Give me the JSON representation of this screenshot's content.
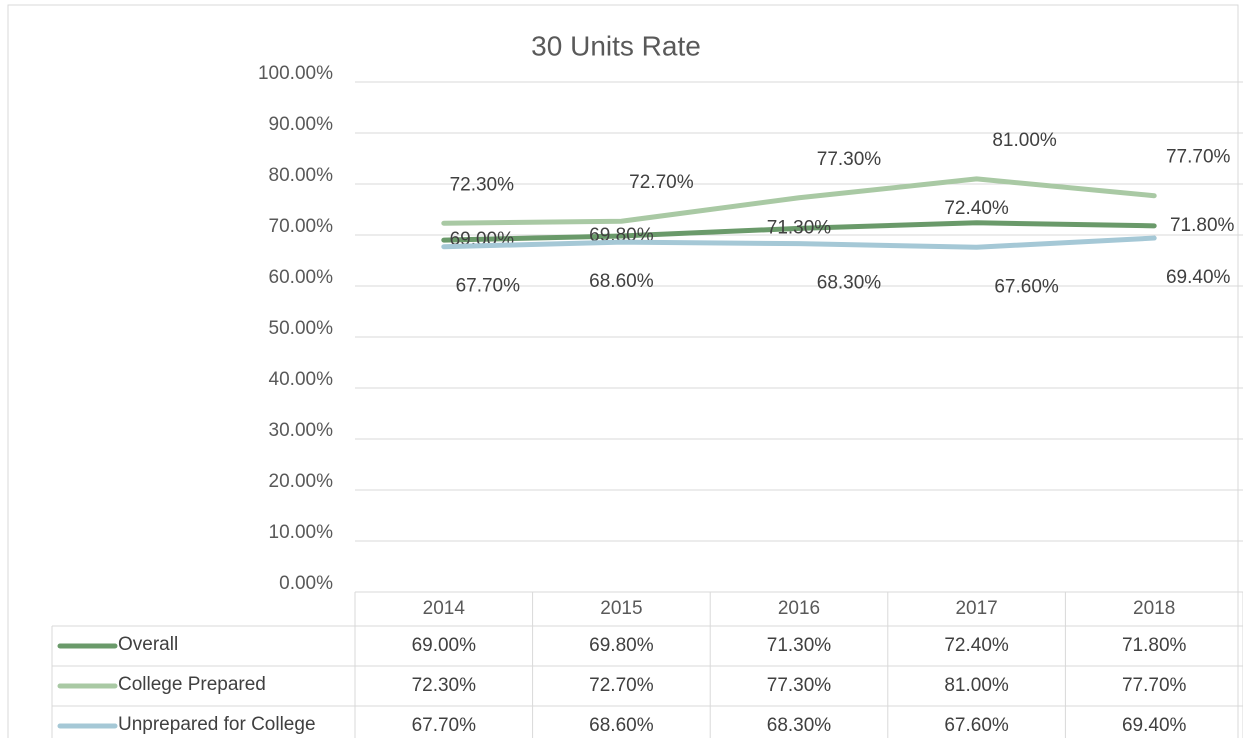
{
  "chart_data": {
    "type": "line",
    "title": "30 Units Rate",
    "categories": [
      "2014",
      "2015",
      "2016",
      "2017",
      "2018"
    ],
    "series": [
      {
        "name": "Overall",
        "color": "#6a9a6a",
        "values": [
          69.0,
          69.8,
          71.3,
          72.4,
          71.8
        ],
        "value_labels": [
          "69.00%",
          "69.80%",
          "71.30%",
          "72.40%",
          "71.80%"
        ]
      },
      {
        "name": "College Prepared",
        "color": "#a9c9a4",
        "values": [
          72.3,
          72.7,
          77.3,
          81.0,
          77.7
        ],
        "value_labels": [
          "72.30%",
          "72.70%",
          "77.30%",
          "81.00%",
          "77.70%"
        ]
      },
      {
        "name": "Unprepared for College",
        "color": "#a5c8d6",
        "values": [
          67.7,
          68.6,
          68.3,
          67.6,
          69.4
        ],
        "value_labels": [
          "67.70%",
          "68.60%",
          "68.30%",
          "67.60%",
          "69.40%"
        ]
      }
    ],
    "ylim": [
      0,
      100
    ],
    "yticks": [
      {
        "value": 0,
        "label": "0.00%"
      },
      {
        "value": 10,
        "label": "10.00%"
      },
      {
        "value": 20,
        "label": "20.00%"
      },
      {
        "value": 30,
        "label": "30.00%"
      },
      {
        "value": 40,
        "label": "40.00%"
      },
      {
        "value": 50,
        "label": "50.00%"
      },
      {
        "value": 60,
        "label": "60.00%"
      },
      {
        "value": 70,
        "label": "70.00%"
      },
      {
        "value": 80,
        "label": "80.00%"
      },
      {
        "value": 90,
        "label": "90.00%"
      },
      {
        "value": 100,
        "label": "100.00%"
      }
    ],
    "grid": true
  }
}
